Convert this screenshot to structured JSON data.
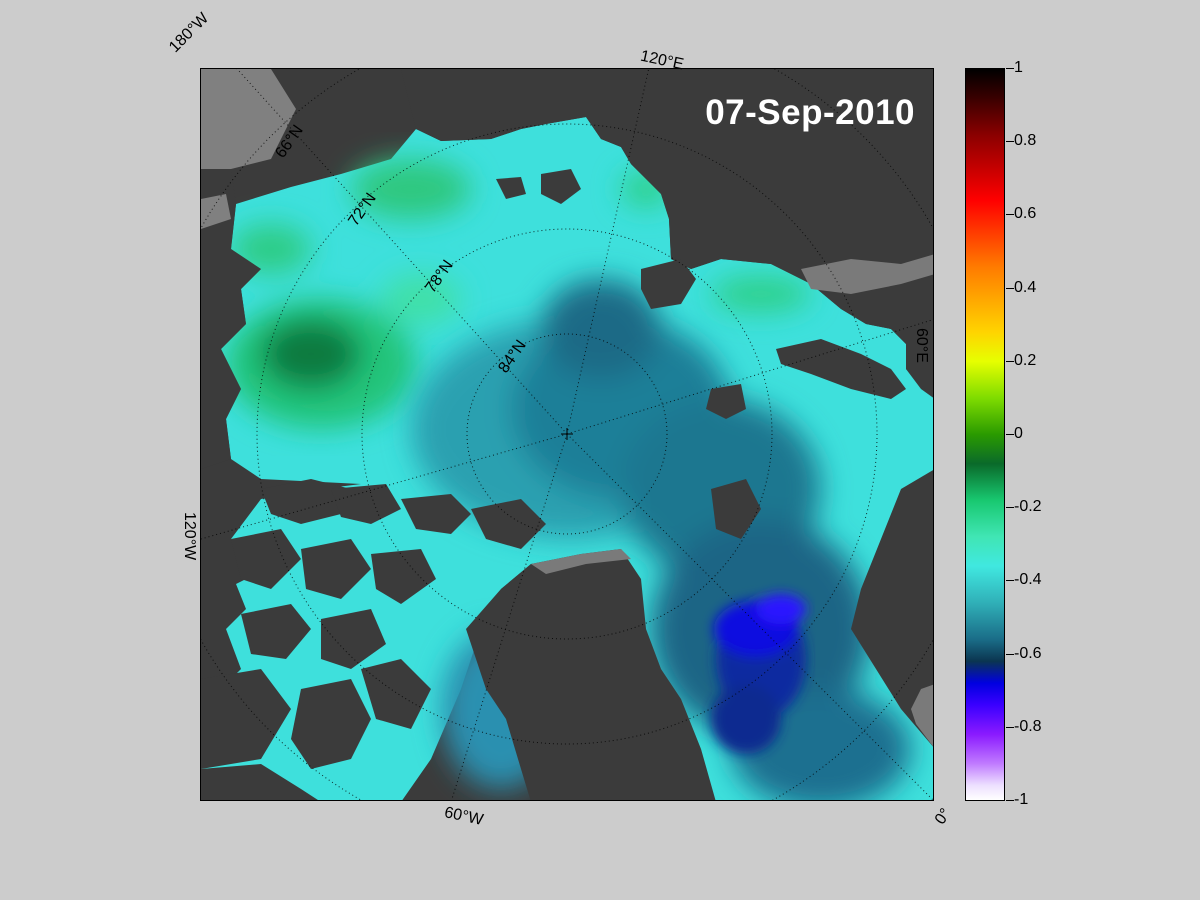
{
  "title": "07-Sep-2010",
  "edge_labels": {
    "lon_180w": "180°W",
    "lon_120e": "120°E",
    "lon_60e": "60°E",
    "lon_0": "0°",
    "lon_60w": "60°W",
    "lon_120w": "120°W"
  },
  "lat_labels": {
    "lat_66": "66°N",
    "lat_72": "72°N",
    "lat_78": "78°N",
    "lat_84": "84°N"
  },
  "colorbar": {
    "ticks": [
      "1",
      "0.8",
      "0.6",
      "0.4",
      "0.2",
      "0",
      "-0.2",
      "-0.4",
      "-0.6",
      "-0.8",
      "-1"
    ],
    "range": [
      -1,
      1
    ]
  },
  "colors": {
    "background": "#cccccc",
    "land": "#3b3b3b",
    "coast_ice": "#7a7a7a",
    "ocean_base": "#40e6e0",
    "title": "#ffffff"
  }
}
